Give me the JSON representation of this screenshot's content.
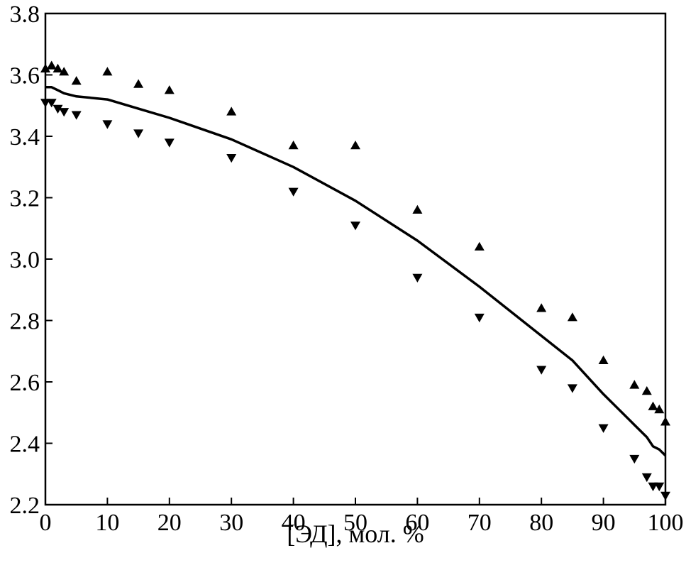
{
  "chart_data": {
    "type": "scatter",
    "title": "",
    "xlabel": "[ЭД], мол. %",
    "ylabel": "",
    "xlim": [
      0,
      100
    ],
    "ylim": [
      2.2,
      3.8
    ],
    "x_ticks": [
      0,
      10,
      20,
      30,
      40,
      50,
      60,
      70,
      80,
      90,
      100
    ],
    "x_tick_labels": [
      "0",
      "10",
      "20",
      "30",
      "40",
      "50",
      "60",
      "70",
      "80",
      "90",
      "100"
    ],
    "y_ticks": [
      2.2,
      2.4,
      2.6,
      2.8,
      3.0,
      3.2,
      3.4,
      3.6,
      3.8
    ],
    "y_tick_labels": [
      "2.2",
      "2.4",
      "2.6",
      "2.8",
      "3.0",
      "3.2",
      "3.4",
      "3.6",
      "3.8"
    ],
    "grid": false,
    "legend": "none",
    "series": [
      {
        "marker": "triangle-up",
        "color": "#000000",
        "x": [
          0,
          1,
          2,
          3,
          5,
          10,
          15,
          20,
          30,
          40,
          50,
          60,
          70,
          80,
          85,
          90,
          95,
          97,
          98,
          99,
          100
        ],
        "y": [
          3.62,
          3.63,
          3.62,
          3.61,
          3.58,
          3.61,
          3.57,
          3.55,
          3.48,
          3.37,
          3.37,
          3.16,
          3.04,
          2.84,
          2.81,
          2.67,
          2.59,
          2.57,
          2.52,
          2.51,
          2.47
        ]
      },
      {
        "marker": "triangle-down",
        "color": "#000000",
        "x": [
          0,
          1,
          2,
          3,
          5,
          10,
          15,
          20,
          30,
          40,
          50,
          60,
          70,
          80,
          85,
          90,
          95,
          97,
          98,
          99,
          100
        ],
        "y": [
          3.51,
          3.51,
          3.49,
          3.48,
          3.47,
          3.44,
          3.41,
          3.38,
          3.33,
          3.22,
          3.11,
          2.94,
          2.81,
          2.64,
          2.58,
          2.45,
          2.35,
          2.29,
          2.26,
          2.26,
          2.23
        ]
      },
      {
        "marker": "line",
        "color": "#000000",
        "x": [
          0,
          1,
          2,
          3,
          5,
          10,
          15,
          20,
          30,
          40,
          50,
          60,
          70,
          80,
          85,
          90,
          95,
          97,
          98,
          99,
          100
        ],
        "y": [
          3.56,
          3.56,
          3.55,
          3.54,
          3.53,
          3.52,
          3.49,
          3.46,
          3.39,
          3.3,
          3.19,
          3.06,
          2.91,
          2.75,
          2.67,
          2.56,
          2.46,
          2.42,
          2.39,
          2.38,
          2.36
        ]
      }
    ]
  }
}
